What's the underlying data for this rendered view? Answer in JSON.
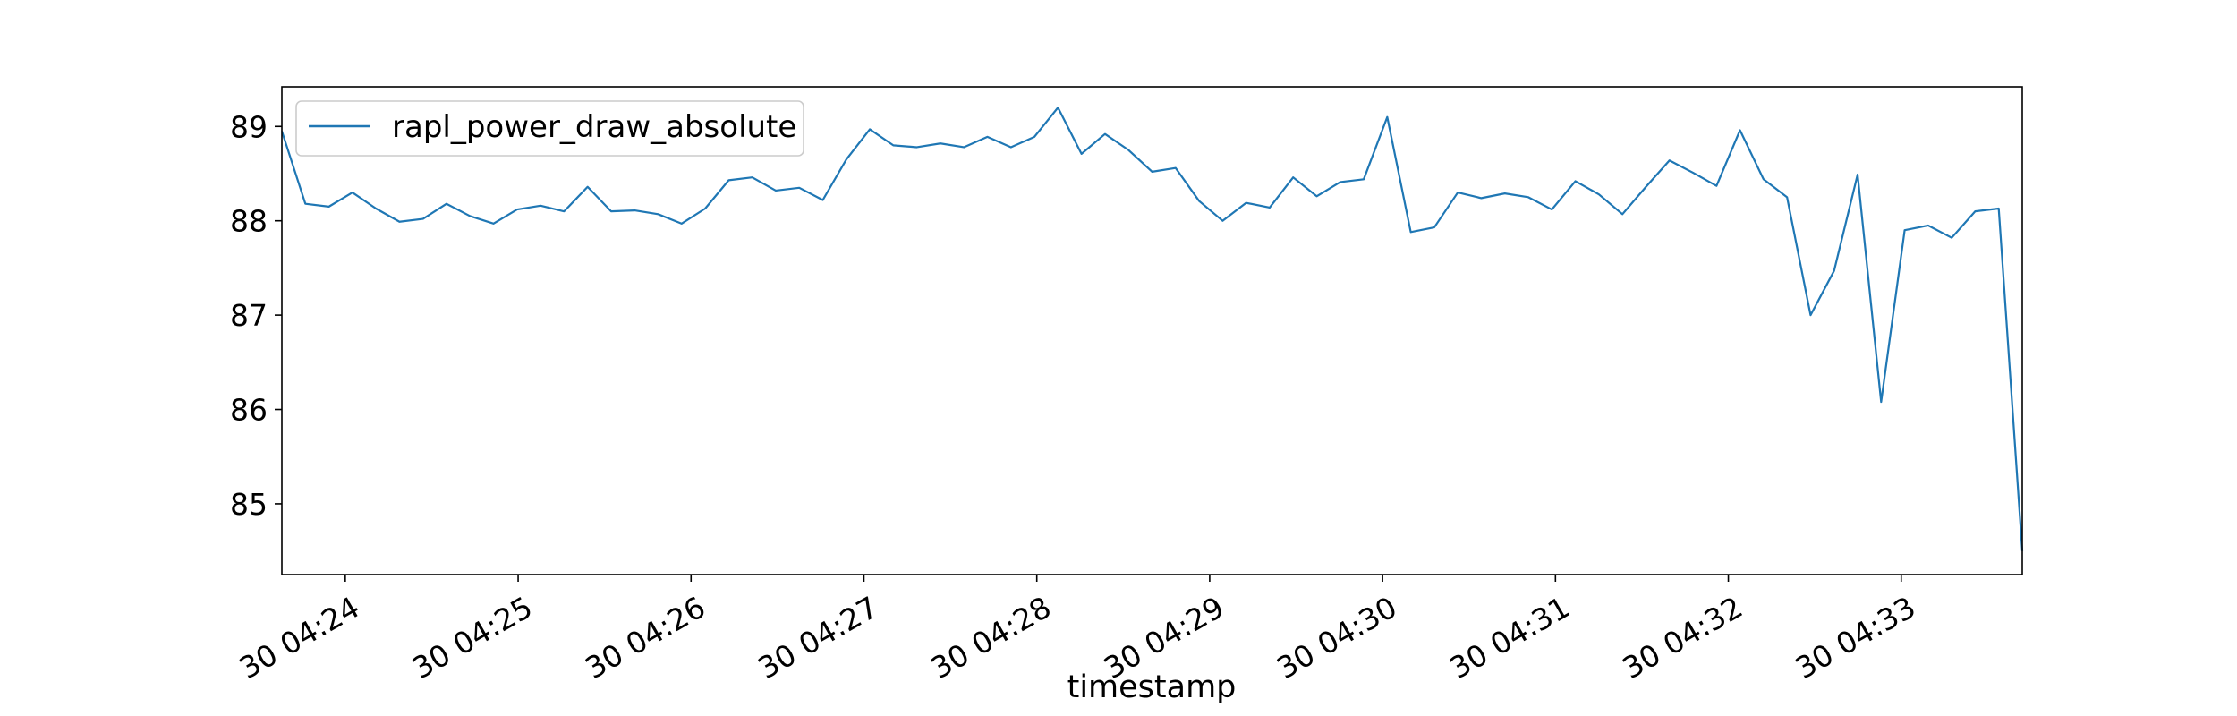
{
  "chart_data": {
    "type": "line",
    "xlabel": "timestamp",
    "ylabel": "",
    "title": "",
    "grid": false,
    "legend_position": "top-left",
    "x_start": "30 04:23:38",
    "x_end": "30 04:33:42",
    "xlim": [
      "30 04:23:38",
      "30 04:33:42"
    ],
    "ylim": [
      84.25,
      89.42
    ],
    "x_ticks": [
      "30 04:24",
      "30 04:25",
      "30 04:26",
      "30 04:27",
      "30 04:28",
      "30 04:29",
      "30 04:30",
      "30 04:31",
      "30 04:32",
      "30 04:33"
    ],
    "y_ticks": [
      "85",
      "86",
      "87",
      "88",
      "89"
    ],
    "series": [
      {
        "name": "rapl_power_draw_absolute",
        "color": "#1f77b4",
        "values": [
          88.95,
          88.18,
          88.15,
          88.3,
          88.13,
          87.99,
          88.02,
          88.18,
          88.05,
          87.97,
          88.12,
          88.16,
          88.1,
          88.36,
          88.1,
          88.11,
          88.07,
          87.97,
          88.13,
          88.43,
          88.46,
          88.32,
          88.35,
          88.22,
          88.65,
          88.97,
          88.8,
          88.78,
          88.82,
          88.78,
          88.89,
          88.78,
          88.89,
          89.2,
          88.71,
          88.92,
          88.75,
          88.52,
          88.56,
          88.21,
          88.0,
          88.19,
          88.14,
          88.46,
          88.26,
          88.41,
          88.44,
          89.1,
          87.88,
          87.93,
          88.3,
          88.24,
          88.29,
          88.25,
          88.12,
          88.42,
          88.28,
          88.07,
          88.36,
          88.64,
          88.51,
          88.37,
          88.96,
          88.44,
          88.25,
          87.0,
          87.47,
          88.49,
          86.08,
          87.9,
          87.95,
          87.82,
          88.1,
          88.13,
          84.5
        ]
      }
    ]
  }
}
